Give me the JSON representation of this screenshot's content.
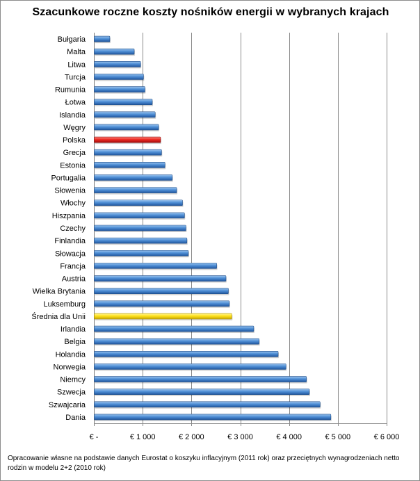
{
  "chart_data": {
    "type": "bar",
    "orientation": "horizontal",
    "title": "Szacunkowe roczne koszty nośników energii w wybranych krajach",
    "categories": [
      "Bułgaria",
      "Malta",
      "Litwa",
      "Turcja",
      "Rumunia",
      "Łotwa",
      "Islandia",
      "Węgry",
      "Polska",
      "Grecja",
      "Estonia",
      "Portugalia",
      "Słowenia",
      "Włochy",
      "Hiszpania",
      "Czechy",
      "Finlandia",
      "Słowacja",
      "Francja",
      "Austria",
      "Wielka Brytania",
      "Luksemburg",
      "Średnia dla Unii",
      "Irlandia",
      "Belgia",
      "Holandia",
      "Norwegia",
      "Niemcy",
      "Szwecja",
      "Szwajcaria",
      "Dania"
    ],
    "values": [
      320,
      820,
      950,
      1010,
      1040,
      1190,
      1250,
      1320,
      1360,
      1380,
      1450,
      1600,
      1690,
      1810,
      1850,
      1880,
      1900,
      1930,
      2510,
      2700,
      2750,
      2770,
      2820,
      3270,
      3380,
      3770,
      3930,
      4350,
      4410,
      4630,
      4850
    ],
    "highlight": {
      "Polska": "#e02020",
      "Średnia dla Unii": "#ffe020"
    },
    "bar_color": "#3a7fcb",
    "xlim": [
      0,
      6000
    ],
    "xticks": [
      0,
      1000,
      2000,
      3000,
      4000,
      5000,
      6000
    ],
    "xtick_labels": [
      "€ -",
      "€ 1 000",
      "€ 2 000",
      "€ 3 000",
      "€ 4 000",
      "€ 5 000",
      "€ 6 000"
    ],
    "xlabel": "",
    "ylabel": "",
    "grid": "vertical"
  },
  "footnote": "Opracowanie własne na podstawie danych Eurostat o koszyku inflacyjnym (2011 rok) oraz przeciętnych wynagrodzeniach netto rodzin w modelu 2+2 (2010 rok)"
}
